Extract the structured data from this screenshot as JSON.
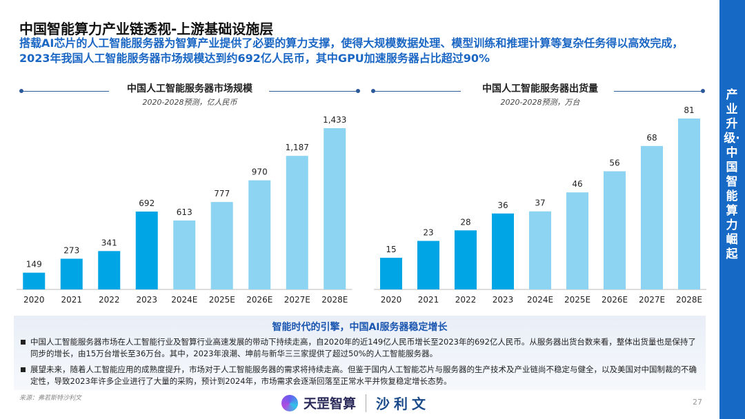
{
  "title": "中国智能算力产业链透视-上游基础设施层",
  "subtitle": "搭载AI芯片的人工智能服务器为智算产业提供了必要的算力支撑，使得大规模数据处理、模型训练和推理计算等复杂任务得以高效完成，2023年我国人工智能服务器市场规模达到约692亿人民币，其中GPU加速服务器占比超过90%",
  "sidebar": "产业升级·中国智能算力崛起",
  "colors": {
    "actual": "#00a5e6",
    "forecast": "#8dd3f2",
    "accent": "#1669c5"
  },
  "chart_data": [
    {
      "type": "bar",
      "title": "中国人工智能服务器市场规模",
      "subtitle": "2020-2028预测，亿人民币",
      "categories": [
        "2020",
        "2021",
        "2022",
        "2023",
        "2024E",
        "2025E",
        "2026E",
        "2027E",
        "2028E"
      ],
      "values": [
        149,
        273,
        341,
        692,
        613,
        777,
        970,
        1187,
        1433
      ],
      "labels": [
        "149",
        "273",
        "341",
        "692",
        "613",
        "777",
        "970",
        "1,187",
        "1,433"
      ],
      "ylim": [
        0,
        1433
      ]
    },
    {
      "type": "bar",
      "title": "中国人工智能服务器出货量",
      "subtitle": "2020-2028预测，万台",
      "categories": [
        "2020",
        "2021",
        "2022",
        "2023",
        "2024E",
        "2025E",
        "2026E",
        "2027E",
        "2028E"
      ],
      "values": [
        15,
        23,
        28,
        36,
        37,
        46,
        56,
        68,
        81
      ],
      "labels": [
        "15",
        "23",
        "28",
        "36",
        "37",
        "46",
        "56",
        "68",
        "81"
      ],
      "ylim": [
        0,
        81
      ]
    }
  ],
  "summary": {
    "title": "智能时代的引擎，中国AI服务器稳定增长",
    "bullets": [
      "中国人工智能服务器市场在人工智能行业及智算行业高速发展的带动下持续走高，自2020年的近149亿人民币增长至2023年的692亿人民币。从服务器出货台数来看，整体出货量也是保持了同步的增长，由15万台增长至36万台。其中，2023年浪潮、坤前与新华三三家提供了超过50%的人工智能服务器。",
      "展望未来，随着人工智能应用的成熟度提升，市场对于人工智能服务器的需求将持续走高。但鉴于国内人工智能芯片与服务器的生产技术及产业链尚不稳定与健全，以及美国对中国制裁的不确定性，导致2023年许多企业进行了大量的采购，预计到2024年，市场需求会逐渐回落至正常水平并恢复稳定增长态势。"
    ]
  },
  "source": "来源：弗若斯特沙利文",
  "page": "27",
  "logo": {
    "a": "天罡智算",
    "b": "沙利文"
  }
}
